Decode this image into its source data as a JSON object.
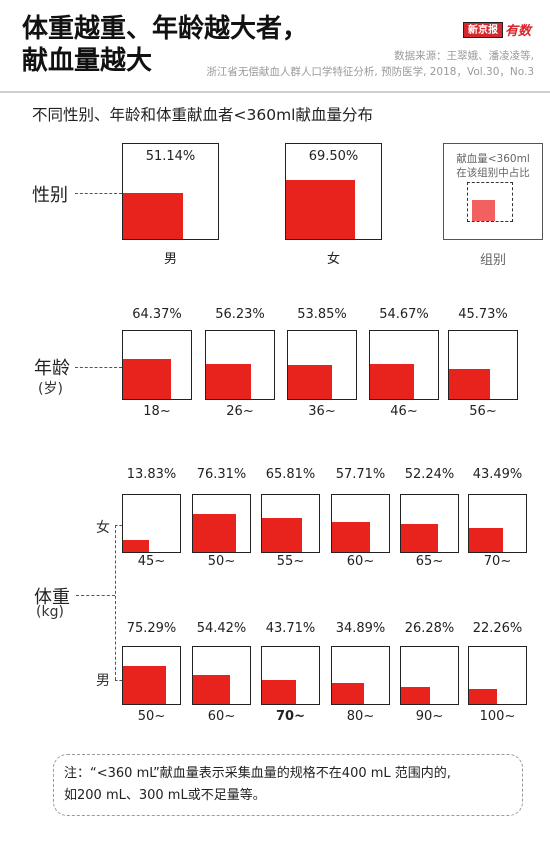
{
  "header": {
    "title_line1": "体重越重、年龄越大者，",
    "title_line2": "献血量越大",
    "logo_box": "新京报",
    "logo_script": "有数",
    "source_line1": "数据来源：王翠娥、潘凌凌等,",
    "source_line2": "浙江省无偿献血人群人口学特征分析, 预防医学, 2018，Vol.30，No.3"
  },
  "subtitle": "不同性别、年龄和体重献血者<360ml献血量分布",
  "legend": {
    "line1": "献血量<360ml",
    "line2": "在该组别中占比",
    "caption": "组别"
  },
  "groups": {
    "gender": "性别",
    "age": "年龄",
    "age_unit": "(岁)",
    "weight": "体重",
    "weight_unit": "(kg)",
    "female": "女",
    "male": "男"
  },
  "chart_data": [
    {
      "type": "bar",
      "group": "性别",
      "categories": [
        "男",
        "女"
      ],
      "values": [
        51.14,
        69.5
      ],
      "labels": [
        "51.14%",
        "69.50%"
      ],
      "ylim": [
        0,
        100
      ]
    },
    {
      "type": "bar",
      "group": "年龄",
      "categories": [
        "18~",
        "26~",
        "36~",
        "46~",
        "56~"
      ],
      "values": [
        64.37,
        56.23,
        53.85,
        54.67,
        45.73
      ],
      "labels": [
        "64.37%",
        "56.23%",
        "53.85%",
        "54.67%",
        "45.73%"
      ],
      "ylim": [
        0,
        100
      ]
    },
    {
      "type": "bar",
      "group": "体重-女",
      "categories": [
        "45~",
        "50~",
        "55~",
        "60~",
        "65~",
        "70~"
      ],
      "values": [
        13.83,
        76.31,
        65.81,
        57.71,
        52.24,
        43.49
      ],
      "labels": [
        "13.83%",
        "76.31%",
        "65.81%",
        "57.71%",
        "52.24%",
        "43.49%"
      ],
      "ylim": [
        0,
        100
      ]
    },
    {
      "type": "bar",
      "group": "体重-男",
      "categories": [
        "50~",
        "60~",
        "70~",
        "80~",
        "90~",
        "100~"
      ],
      "values": [
        75.29,
        54.42,
        43.71,
        34.89,
        26.28,
        22.26
      ],
      "labels": [
        "75.29%",
        "54.42%",
        "43.71%",
        "34.89%",
        "26.28%",
        "22.26%"
      ],
      "ylim": [
        0,
        100
      ]
    }
  ],
  "note": {
    "line1": "注：“<360 mL”献血量表示采集血量的规格不在400 mL 范围内的,",
    "line2": "如200 mL、300 mL或不足量等。"
  }
}
